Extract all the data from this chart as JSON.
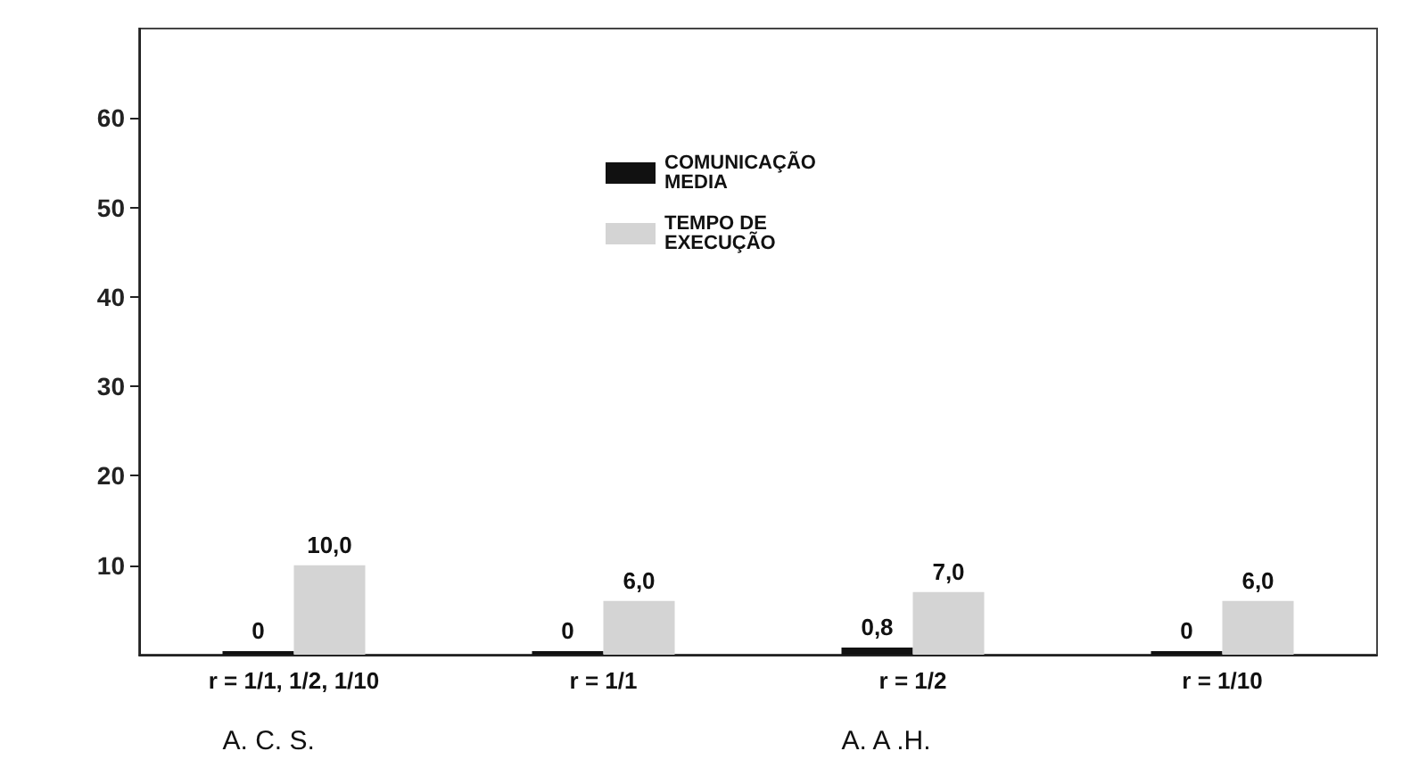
{
  "chart_data": {
    "type": "bar",
    "categories": [
      "r = 1/1, 1/2, 1/10",
      "r = 1/1",
      "r = 1/2",
      "r = 1/10"
    ],
    "series": [
      {
        "name": "COMUNICAÇÃO MEDIA",
        "color": "#111111",
        "values": [
          0,
          0,
          0.8,
          0
        ],
        "value_labels": [
          "0",
          "0",
          "0,8",
          "0"
        ]
      },
      {
        "name": "TEMPO DE EXECUÇÃO",
        "color": "#d4d4d4",
        "values": [
          10.0,
          6.0,
          7.0,
          6.0
        ],
        "value_labels": [
          "10,0",
          "6,0",
          "7,0",
          "6,0"
        ]
      }
    ],
    "ylim": [
      0,
      70
    ],
    "yticks": [
      10,
      20,
      30,
      40,
      50,
      60
    ],
    "grid": false,
    "legend": "top",
    "annotations": [
      "A. C. S.",
      "A. A .H."
    ]
  }
}
